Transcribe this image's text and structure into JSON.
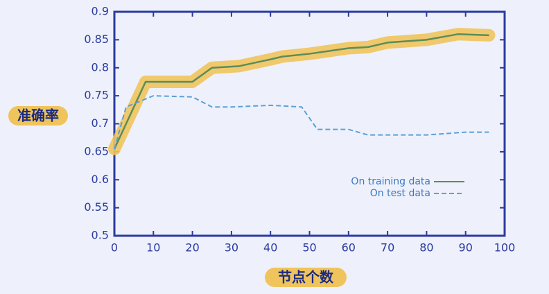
{
  "chart_data": {
    "type": "line",
    "xlabel": "节点个数",
    "ylabel": "准确率",
    "xlim": [
      0,
      100
    ],
    "ylim": [
      0.5,
      0.9
    ],
    "xticks": [
      0,
      10,
      20,
      30,
      40,
      50,
      60,
      70,
      80,
      90,
      100
    ],
    "yticks": [
      0.5,
      0.55,
      0.6,
      0.65,
      0.7,
      0.75,
      0.8,
      0.85,
      0.9
    ],
    "highlight_color": "#f0c45c",
    "series": [
      {
        "name": "On training data",
        "color": "#5b8c5a",
        "highlight": true,
        "x": [
          0,
          8,
          10,
          20,
          25,
          32,
          40,
          43,
          50,
          60,
          65,
          70,
          80,
          88,
          96
        ],
        "values": [
          0.655,
          0.775,
          0.775,
          0.775,
          0.8,
          0.803,
          0.815,
          0.82,
          0.825,
          0.835,
          0.837,
          0.845,
          0.85,
          0.86,
          0.858
        ]
      },
      {
        "name": "On test data",
        "color": "#5aa0d8",
        "dashed": true,
        "x": [
          0,
          3,
          10,
          20,
          25,
          30,
          40,
          48,
          52,
          60,
          65,
          80,
          90,
          96
        ],
        "values": [
          0.655,
          0.73,
          0.75,
          0.748,
          0.73,
          0.73,
          0.733,
          0.73,
          0.69,
          0.69,
          0.68,
          0.68,
          0.685,
          0.685
        ]
      }
    ],
    "legend": "lower right"
  }
}
